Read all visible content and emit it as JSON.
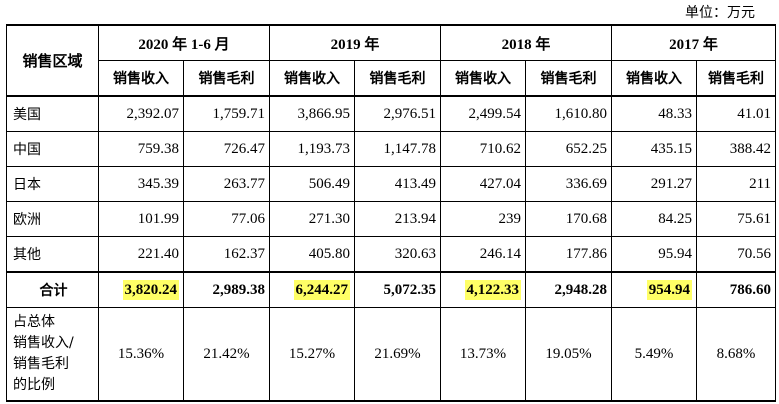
{
  "unit_label": "单位：万元",
  "header": {
    "region_label": "销售区域",
    "years": [
      "2020 年 1-6 月",
      "2019 年",
      "2018 年",
      "2017 年"
    ],
    "metric_revenue": "销售收入",
    "metric_profit": "销售毛利"
  },
  "rows": [
    {
      "region": "美国",
      "values": [
        "2,392.07",
        "1,759.71",
        "3,866.95",
        "2,976.51",
        "2,499.54",
        "1,610.80",
        "48.33",
        "41.01"
      ]
    },
    {
      "region": "中国",
      "values": [
        "759.38",
        "726.47",
        "1,193.73",
        "1,147.78",
        "710.62",
        "652.25",
        "435.15",
        "388.42"
      ]
    },
    {
      "region": "日本",
      "values": [
        "345.39",
        "263.77",
        "506.49",
        "413.49",
        "427.04",
        "336.69",
        "291.27",
        "211"
      ]
    },
    {
      "region": "欧洲",
      "values": [
        "101.99",
        "77.06",
        "271.30",
        "213.94",
        "239",
        "170.68",
        "84.25",
        "75.61"
      ]
    },
    {
      "region": "其他",
      "values": [
        "221.40",
        "162.37",
        "405.80",
        "320.63",
        "246.14",
        "177.86",
        "95.94",
        "70.56"
      ]
    }
  ],
  "total": {
    "label": "合计",
    "values": [
      "3,820.24",
      "2,989.38",
      "6,244.27",
      "5,072.35",
      "4,122.33",
      "2,948.28",
      "954.94",
      "786.60"
    ]
  },
  "ratio": {
    "label_lines": [
      "占总体",
      "销售收入/",
      "销售毛利",
      "的比例"
    ],
    "values": [
      "15.36%",
      "21.42%",
      "15.27%",
      "21.69%",
      "13.73%",
      "19.05%",
      "5.49%",
      "8.68%"
    ]
  },
  "highlight_color": "#ffff66"
}
